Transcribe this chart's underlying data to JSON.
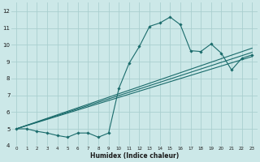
{
  "xlabel": "Humidex (Indice chaleur)",
  "xlim": [
    -0.5,
    23.5
  ],
  "ylim": [
    4,
    12.5
  ],
  "yticks": [
    4,
    5,
    6,
    7,
    8,
    9,
    10,
    11,
    12
  ],
  "xticks": [
    0,
    1,
    2,
    3,
    4,
    5,
    6,
    7,
    8,
    9,
    10,
    11,
    12,
    13,
    14,
    15,
    16,
    17,
    18,
    19,
    20,
    21,
    22,
    23
  ],
  "bg_color": "#cce8e8",
  "grid_color": "#aacfcf",
  "line_color": "#1a6b6b",
  "line1_x": [
    0,
    1,
    2,
    3,
    4,
    5,
    6,
    7,
    8,
    9,
    10,
    11,
    12,
    13,
    14,
    15,
    16,
    17,
    18,
    19,
    20,
    21,
    22,
    23
  ],
  "line1_y": [
    5.0,
    5.0,
    4.85,
    4.75,
    4.6,
    4.5,
    4.75,
    4.75,
    4.5,
    4.75,
    7.4,
    8.9,
    9.9,
    11.1,
    11.3,
    11.65,
    11.2,
    9.65,
    9.6,
    10.05,
    9.5,
    8.5,
    9.2,
    9.4
  ],
  "line2_x": [
    0,
    23
  ],
  "line2_y": [
    5.0,
    9.3
  ],
  "line3_x": [
    0,
    23
  ],
  "line3_y": [
    5.0,
    9.55
  ],
  "line4_x": [
    0,
    23
  ],
  "line4_y": [
    5.0,
    9.8
  ]
}
